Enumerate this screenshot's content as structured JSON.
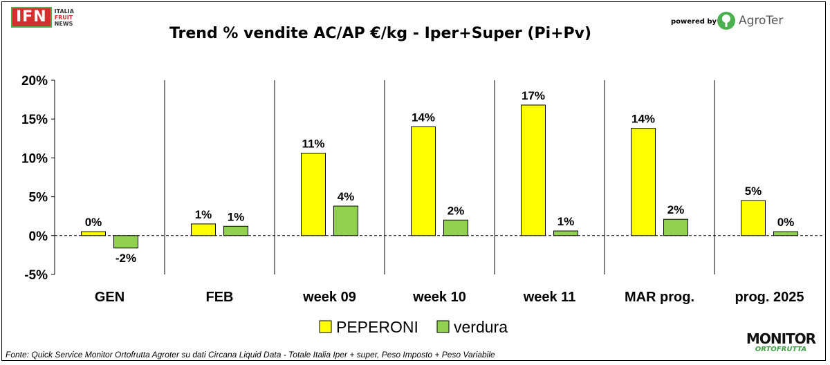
{
  "header": {
    "logo_main": "IFN",
    "logo_line1": "ITALIA",
    "logo_line2": "FRUIT",
    "logo_line3": "NEWS",
    "title": "Trend % vendite AC/AP €/kg -  Iper+Super (Pi+Pv)",
    "powered_by": "powered by",
    "sponsor": "AgroTer"
  },
  "footer": {
    "source": "Fonte: Quick Service Monitor Ortofrutta Agroter su dati Circana Liquid Data - Totale Italia Iper + super, Peso Imposto + Peso Variabile",
    "monitor_top": "MONITOR",
    "monitor_bottom": "ORTOFRUTTA"
  },
  "chart_data": {
    "type": "bar",
    "categories": [
      "GEN",
      "FEB",
      "week 09",
      "week 10",
      "week 11",
      "MAR prog.",
      "prog. 2025"
    ],
    "series": [
      {
        "name": "PEPERONI",
        "color": "#ffff00",
        "values": [
          0.5,
          1.5,
          10.6,
          14.0,
          16.8,
          13.8,
          4.5
        ],
        "labels": [
          "0%",
          "1%",
          "11%",
          "14%",
          "17%",
          "14%",
          "5%"
        ]
      },
      {
        "name": "verdura",
        "color": "#92d050",
        "values": [
          -1.6,
          1.2,
          3.8,
          2.0,
          0.6,
          2.1,
          0.5
        ],
        "labels": [
          "-2%",
          "1%",
          "4%",
          "2%",
          "1%",
          "2%",
          "0%"
        ]
      }
    ],
    "ylim": [
      -5,
      20
    ],
    "yticks": [
      -5,
      0,
      5,
      10,
      15,
      20
    ],
    "ytick_labels": [
      "-5%",
      "0%",
      "5%",
      "10%",
      "15%",
      "20%"
    ],
    "xlabel": "",
    "ylabel": "",
    "grid": false,
    "legend_position": "bottom"
  }
}
